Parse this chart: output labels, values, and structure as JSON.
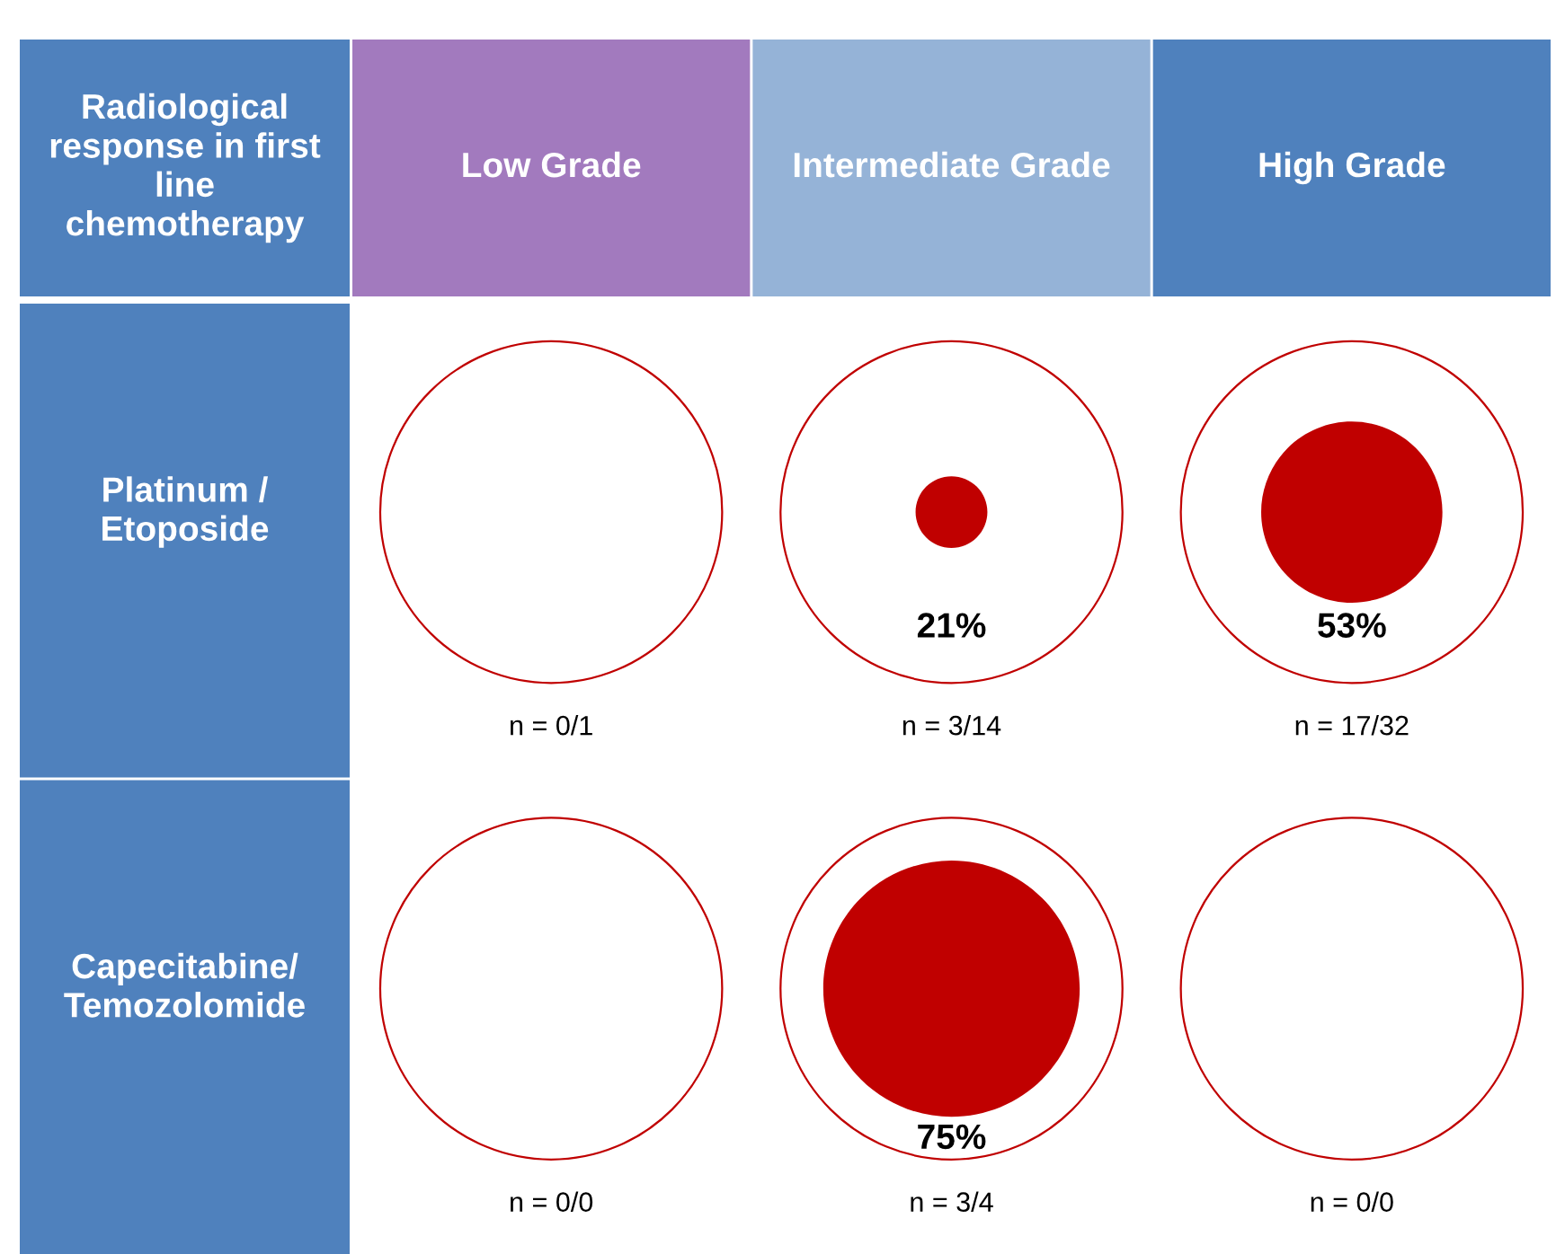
{
  "chart_data": {
    "type": "other",
    "title": "Radiological response in first line chemotherapy",
    "categories": [
      "Low Grade",
      "Intermediate Grade",
      "High Grade"
    ],
    "colors": [
      "#a27abe",
      "#95b3d7",
      "#4f81bd"
    ],
    "y_categories": [
      "Platinum / Etoposide",
      "Capecitabine/ Temozolomide"
    ],
    "series": [
      {
        "color": "#c00000",
        "values": [
          null,
          21,
          53
        ],
        "value_labels": [
          null,
          "21%",
          "53%"
        ]
      },
      {
        "color": "#c00000",
        "values": [
          null,
          75,
          null
        ],
        "value_labels": [
          null,
          "75%",
          null
        ]
      }
    ],
    "annotations": [
      {
        "text": "n = 0/1",
        "x": "Low Grade",
        "y": "Platinum / Etoposide"
      },
      {
        "text": "n = 3/14",
        "x": "Intermediate Grade",
        "y": "Platinum / Etoposide"
      },
      {
        "text": "n = 17/32",
        "x": "High Grade",
        "y": "Platinum / Etoposide"
      },
      {
        "text": "n = 0/0",
        "x": "Low Grade",
        "y": "Capecitabine/ Temozolomide"
      },
      {
        "text": "n = 3/4",
        "x": "Intermediate Grade",
        "y": "Capecitabine/ Temozolomide"
      },
      {
        "text": "n = 0/0",
        "x": "High Grade",
        "y": "Capecitabine/ Temozolomide"
      }
    ]
  }
}
